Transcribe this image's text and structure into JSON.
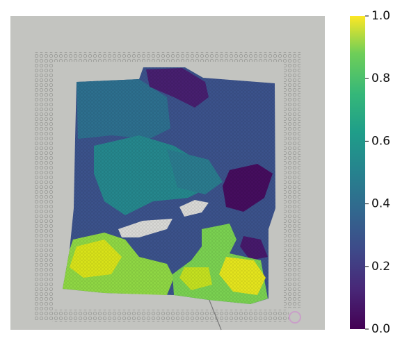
{
  "chart_data": {
    "type": "spatial-heatmap",
    "clim": [
      0,
      1
    ],
    "cticks": [
      {
        "value": 0,
        "label": "0.0"
      },
      0.2,
      0.4,
      0.6,
      0.8,
      {
        "value": 1,
        "label": "1.0"
      }
    ]
  }
}
